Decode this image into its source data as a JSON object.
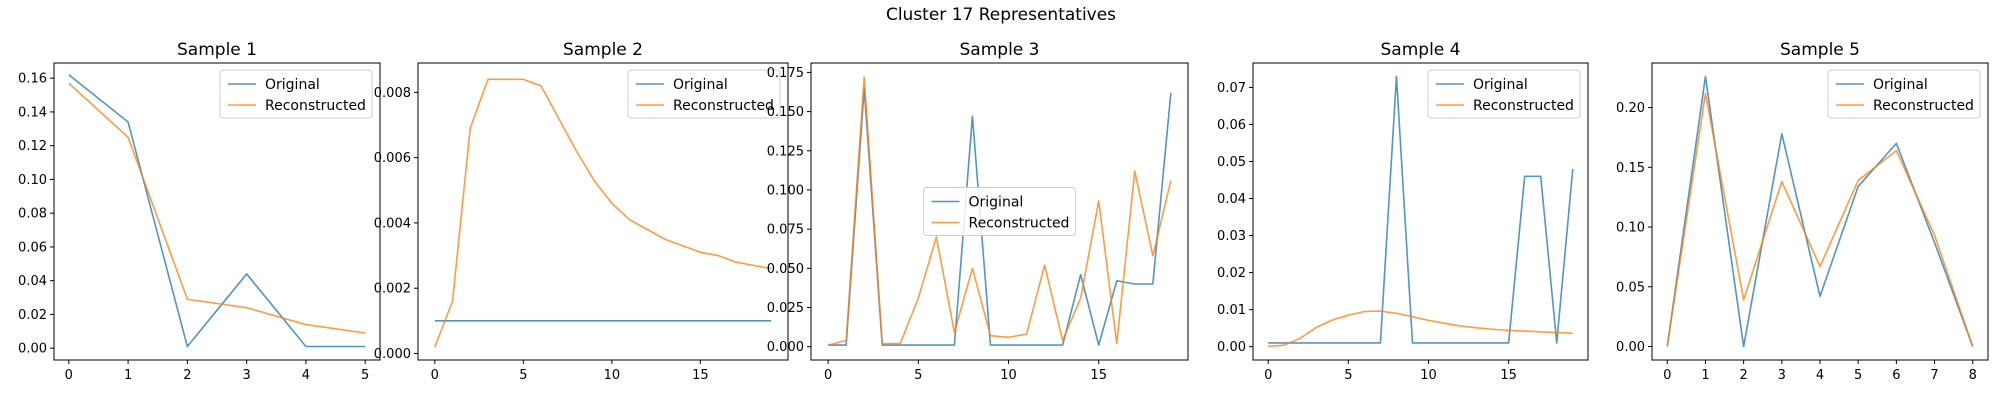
{
  "figure": {
    "title": "Cluster 17 Representatives"
  },
  "colors": {
    "original": "#1f77b4",
    "reconstructed": "#ff7f0e"
  },
  "chart_data": [
    {
      "type": "line",
      "title": "Sample 1",
      "x": [
        0,
        1,
        2,
        3,
        4,
        5
      ],
      "series": [
        {
          "name": "Original",
          "values": [
            0.162,
            0.134,
            0.001,
            0.044,
            0.001,
            0.001
          ]
        },
        {
          "name": "Reconstructed",
          "values": [
            0.157,
            0.125,
            0.029,
            0.024,
            0.014,
            0.009
          ]
        }
      ],
      "xlim": [
        -0.25,
        5.25
      ],
      "ylim": [
        -0.007,
        0.169
      ],
      "xticks": [
        0,
        1,
        2,
        3,
        4,
        5
      ],
      "yticks": [
        0.0,
        0.02,
        0.04,
        0.06,
        0.08,
        0.1,
        0.12,
        0.14,
        0.16
      ],
      "ytick_labels": [
        "0.00",
        "0.02",
        "0.04",
        "0.06",
        "0.08",
        "0.10",
        "0.12",
        "0.14",
        "0.16"
      ],
      "legend": "upper-right"
    },
    {
      "type": "line",
      "title": "Sample 2",
      "x": [
        0,
        1,
        2,
        3,
        4,
        5,
        6,
        7,
        8,
        9,
        10,
        11,
        12,
        13,
        14,
        15,
        16,
        17,
        18,
        19
      ],
      "series": [
        {
          "name": "Original",
          "values": [
            0.001,
            0.001,
            0.001,
            0.001,
            0.001,
            0.001,
            0.001,
            0.001,
            0.001,
            0.001,
            0.001,
            0.001,
            0.001,
            0.001,
            0.001,
            0.001,
            0.001,
            0.001,
            0.001,
            0.001
          ]
        },
        {
          "name": "Reconstructed",
          "values": [
            0.0002,
            0.0016,
            0.0069,
            0.0084,
            0.0084,
            0.0084,
            0.0082,
            0.0072,
            0.0062,
            0.0053,
            0.0046,
            0.0041,
            0.0038,
            0.0035,
            0.0033,
            0.0031,
            0.003,
            0.0028,
            0.0027,
            0.0026
          ]
        }
      ],
      "xlim": [
        -0.95,
        19.95
      ],
      "ylim": [
        -0.0002,
        0.0089
      ],
      "xticks": [
        0,
        5,
        10,
        15
      ],
      "yticks": [
        0.0,
        0.002,
        0.004,
        0.006,
        0.008
      ],
      "ytick_labels": [
        "0.000",
        "0.002",
        "0.004",
        "0.006",
        "0.008"
      ],
      "legend": "upper-right"
    },
    {
      "type": "line",
      "title": "Sample 3",
      "x": [
        0,
        1,
        2,
        3,
        4,
        5,
        6,
        7,
        8,
        9,
        10,
        11,
        12,
        13,
        14,
        15,
        16,
        17,
        18,
        19
      ],
      "series": [
        {
          "name": "Original",
          "values": [
            0.001,
            0.001,
            0.165,
            0.001,
            0.001,
            0.001,
            0.001,
            0.001,
            0.147,
            0.001,
            0.001,
            0.001,
            0.001,
            0.001,
            0.046,
            0.001,
            0.042,
            0.04,
            0.04,
            0.162
          ]
        },
        {
          "name": "Reconstructed",
          "values": [
            0.001,
            0.004,
            0.172,
            0.002,
            0.002,
            0.031,
            0.07,
            0.009,
            0.05,
            0.007,
            0.006,
            0.008,
            0.052,
            0.004,
            0.031,
            0.093,
            0.002,
            0.112,
            0.058,
            0.106
          ]
        }
      ],
      "xlim": [
        -0.95,
        19.95
      ],
      "ylim": [
        -0.0085,
        0.181
      ],
      "xticks": [
        0,
        5,
        10,
        15
      ],
      "yticks": [
        0.0,
        0.025,
        0.05,
        0.075,
        0.1,
        0.125,
        0.15,
        0.175
      ],
      "ytick_labels": [
        "0.000",
        "0.025",
        "0.050",
        "0.075",
        "0.100",
        "0.125",
        "0.150",
        "0.175"
      ],
      "legend": "center"
    },
    {
      "type": "line",
      "title": "Sample 4",
      "x": [
        0,
        1,
        2,
        3,
        4,
        5,
        6,
        7,
        8,
        9,
        10,
        11,
        12,
        13,
        14,
        15,
        16,
        17,
        18,
        19
      ],
      "series": [
        {
          "name": "Original",
          "values": [
            0.001,
            0.001,
            0.001,
            0.001,
            0.001,
            0.001,
            0.001,
            0.001,
            0.073,
            0.001,
            0.001,
            0.001,
            0.001,
            0.001,
            0.001,
            0.001,
            0.046,
            0.046,
            0.001,
            0.048
          ]
        },
        {
          "name": "Reconstructed",
          "values": [
            0.0001,
            0.0004,
            0.0023,
            0.0052,
            0.0072,
            0.0085,
            0.0095,
            0.0096,
            0.009,
            0.0081,
            0.0071,
            0.0063,
            0.0056,
            0.0051,
            0.0047,
            0.0044,
            0.0042,
            0.004,
            0.0038,
            0.0036
          ]
        }
      ],
      "xlim": [
        -0.95,
        19.95
      ],
      "ylim": [
        -0.0036,
        0.0766
      ],
      "xticks": [
        0,
        5,
        10,
        15
      ],
      "yticks": [
        0.0,
        0.01,
        0.02,
        0.03,
        0.04,
        0.05,
        0.06,
        0.07
      ],
      "ytick_labels": [
        "0.00",
        "0.01",
        "0.02",
        "0.03",
        "0.04",
        "0.05",
        "0.06",
        "0.07"
      ],
      "legend": "upper-right"
    },
    {
      "type": "line",
      "title": "Sample 5",
      "x": [
        0,
        1,
        2,
        3,
        4,
        5,
        6,
        7,
        8
      ],
      "series": [
        {
          "name": "Original",
          "values": [
            0.0,
            0.226,
            0.0,
            0.178,
            0.042,
            0.134,
            0.17,
            0.087,
            0.0
          ]
        },
        {
          "name": "Reconstructed",
          "values": [
            0.0,
            0.212,
            0.039,
            0.138,
            0.067,
            0.139,
            0.164,
            0.093,
            0.0
          ]
        }
      ],
      "xlim": [
        -0.4,
        8.4
      ],
      "ylim": [
        -0.0113,
        0.2373
      ],
      "xticks": [
        0,
        1,
        2,
        3,
        4,
        5,
        6,
        7,
        8
      ],
      "yticks": [
        0.0,
        0.05,
        0.1,
        0.15,
        0.2
      ],
      "ytick_labels": [
        "0.00",
        "0.05",
        "0.10",
        "0.15",
        "0.20"
      ],
      "legend": "upper-right"
    }
  ]
}
